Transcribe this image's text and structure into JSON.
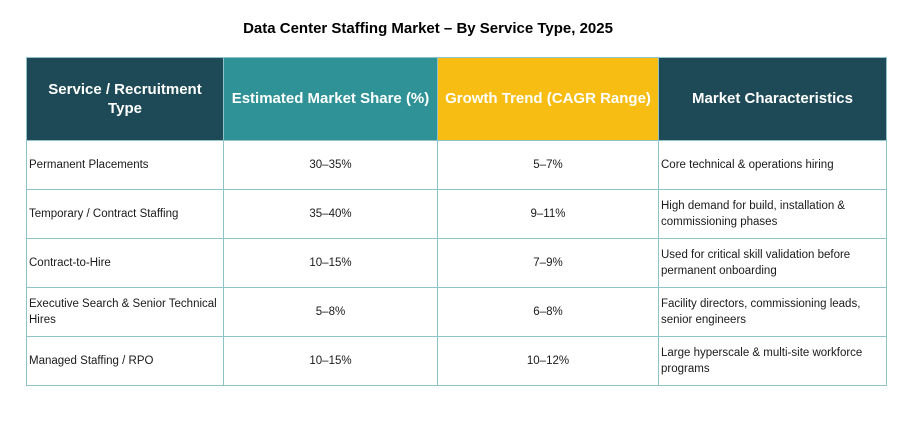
{
  "chart_data": {
    "type": "table",
    "title": "Data Center Staffing Market – By Service Type, 2025",
    "columns": [
      "Service / Recruitment Type",
      "Estimated Market Share (%)",
      "Growth Trend (CAGR Range)",
      "Market Characteristics"
    ],
    "header_colors": [
      "#1e4a57",
      "#2e9297",
      "#f7bd13",
      "#1e4a57"
    ],
    "rows": [
      [
        "Permanent Placements",
        "30–35%",
        "5–7%",
        "Core technical & operations hiring"
      ],
      [
        "Temporary / Contract Staffing",
        "35–40%",
        "9–11%",
        "High demand for build, installation & commissioning phases"
      ],
      [
        "Contract-to-Hire",
        "10–15%",
        "7–9%",
        "Used for critical skill validation before permanent onboarding"
      ],
      [
        "Executive Search & Senior Technical Hires",
        "5–8%",
        "6–8%",
        "Facility directors, commissioning leads, senior engineers"
      ],
      [
        "Managed Staffing / RPO",
        "10–15%",
        "10–12%",
        "Large hyperscale & multi-site workforce programs"
      ]
    ]
  }
}
